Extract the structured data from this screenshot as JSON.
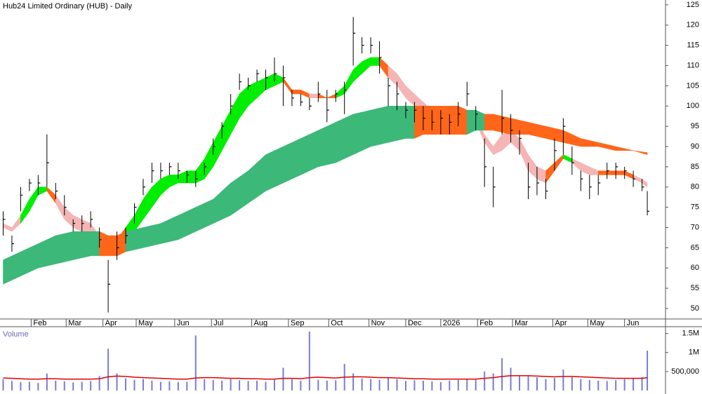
{
  "chart_data": [
    {
      "type": "hlc",
      "title": "Hub24 Limited Ordinary (HUB) - Daily",
      "color": "#000000",
      "x": [
        0,
        5,
        10,
        15,
        20,
        25,
        30,
        35,
        40,
        45,
        50,
        55,
        60,
        65,
        70,
        75,
        80,
        85,
        90,
        95,
        100,
        105,
        110,
        115,
        120,
        125,
        130,
        135,
        140,
        145,
        150,
        155,
        160,
        165,
        170,
        175,
        180,
        185,
        190,
        195,
        200,
        205,
        210,
        215,
        220,
        225,
        230,
        235,
        240,
        245,
        250,
        255,
        260,
        265,
        270,
        275,
        280,
        285,
        290,
        295,
        300,
        305,
        310,
        315,
        320,
        325,
        330,
        335,
        340,
        345,
        350,
        355,
        360,
        365,
        368
      ],
      "high": [
        74,
        68,
        80,
        82,
        83,
        93,
        81,
        78,
        72,
        73,
        74,
        70,
        62,
        69,
        70,
        76,
        82,
        86,
        86,
        86,
        86,
        84,
        84,
        86,
        92,
        96,
        103,
        108,
        107,
        109,
        109,
        112,
        110,
        104,
        103,
        102,
        106,
        104,
        104,
        106,
        122,
        117,
        117,
        116,
        107,
        106,
        101,
        101,
        100,
        99,
        99,
        98,
        101,
        106,
        100,
        92,
        85,
        104,
        98,
        94,
        86,
        85,
        82,
        92,
        97,
        90,
        84,
        83,
        83,
        86,
        86,
        85,
        84,
        82,
        79
      ],
      "low": [
        68,
        64,
        74,
        79,
        78,
        80,
        77,
        73,
        69,
        69,
        70,
        65,
        49,
        62,
        66,
        71,
        78,
        81,
        82,
        83,
        82,
        81,
        80,
        83,
        88,
        92,
        98,
        104,
        104,
        106,
        104,
        106,
        100,
        100,
        100,
        99,
        101,
        96,
        101,
        98,
        110,
        113,
        113,
        108,
        100,
        99,
        97,
        96,
        94,
        94,
        93,
        93,
        95,
        100,
        94,
        80,
        75,
        93,
        91,
        88,
        77,
        78,
        77,
        84,
        88,
        83,
        79,
        77,
        78,
        82,
        82,
        82,
        80,
        79,
        73
      ],
      "close": [
        72,
        66,
        78,
        81,
        81,
        86,
        79,
        75,
        71,
        71,
        72,
        67,
        56,
        65,
        68,
        75,
        80,
        84,
        84,
        85,
        84,
        83,
        82,
        85,
        90,
        95,
        100,
        106,
        105,
        108,
        107,
        108,
        107,
        102,
        101,
        100,
        103,
        99,
        103,
        104,
        118,
        115,
        115,
        112,
        105,
        103,
        99,
        99,
        97,
        96,
        97,
        96,
        98,
        103,
        98,
        85,
        80,
        97,
        94,
        92,
        80,
        81,
        79,
        89,
        95,
        86,
        82,
        80,
        81,
        84,
        85,
        84,
        82,
        80,
        74
      ],
      "bands": [
        {
          "upper": [
            71,
            70,
            73,
            77,
            80,
            80,
            78,
            75,
            73,
            72,
            71,
            68,
            66,
            67,
            70,
            73,
            77,
            80,
            82,
            83,
            83,
            84,
            84,
            87,
            91,
            95,
            99,
            103,
            105,
            106,
            107,
            108,
            107,
            104,
            104,
            103,
            103,
            102,
            103,
            105,
            109,
            111,
            112,
            112,
            110,
            108,
            105,
            103,
            101,
            99,
            98,
            98,
            99,
            98,
            97,
            93,
            90,
            93,
            94,
            92,
            88,
            85,
            84,
            86,
            88,
            87,
            86,
            85,
            84,
            84,
            84,
            84,
            83,
            82,
            81
          ],
          "lower": [
            70,
            69,
            71,
            74,
            78,
            79,
            76,
            72,
            70,
            69,
            68,
            66,
            64,
            65,
            67,
            69,
            72,
            75,
            78,
            80,
            81,
            81,
            81,
            82,
            85,
            89,
            93,
            97,
            100,
            102,
            104,
            105,
            106,
            103,
            103,
            102,
            102,
            102,
            102,
            103,
            106,
            108,
            110,
            110,
            107,
            105,
            102,
            100,
            99,
            98,
            97,
            97,
            98,
            98,
            96,
            91,
            88,
            89,
            91,
            89,
            84,
            82,
            81,
            84,
            87,
            86,
            84,
            83,
            83,
            83,
            83,
            83,
            82,
            81,
            80
          ],
          "colors": [
            "#f5b5b5",
            "#f5b5b5",
            "#00ee00",
            "#00ee00",
            "#00ee00",
            "#ff6619",
            "#f5b5b5",
            "#f5b5b5",
            "#f5b5b5",
            "#f5b5b5",
            "#f5b5b5",
            "#ff6619",
            "#ff6619",
            "#ff6619",
            "#00ee00",
            "#00ee00",
            "#00ee00",
            "#00ee00",
            "#00ee00",
            "#00ee00",
            "#00ee00",
            "#00ee00",
            "#00ee00",
            "#00ee00",
            "#00ee00",
            "#00ee00",
            "#00ee00",
            "#00ee00",
            "#00ee00",
            "#00ee00",
            "#00ee00",
            "#00ee00",
            "#ff6619",
            "#ff6619",
            "#ff6619",
            "#f5b5b5",
            "#ff6619",
            "#ff6619",
            "#00ee00",
            "#00ee00",
            "#00ee00",
            "#00ee00",
            "#00ee00",
            "#ff6619",
            "#f5b5b5",
            "#f5b5b5",
            "#f5b5b5",
            "#f5b5b5",
            "#f5b5b5",
            "#f5b5b5",
            "#f5b5b5",
            "#ff6619",
            "#ff6619",
            "#ff6619",
            "#f5b5b5",
            "#f5b5b5",
            "#f5b5b5",
            "#f5b5b5",
            "#f5b5b5",
            "#f5b5b5",
            "#f5b5b5",
            "#f5b5b5",
            "#ff6619",
            "#ff6619",
            "#00ee00",
            "#f5b5b5",
            "#f5b5b5",
            "#f5b5b5",
            "#ff6619",
            "#ff6619",
            "#ff6619",
            "#ff6619",
            "#f5b5b5",
            "#f5b5b5",
            "#f5b5b5"
          ]
        },
        {
          "x": [
            0,
            10,
            20,
            30,
            40,
            50,
            55,
            60,
            65,
            70,
            80,
            90,
            100,
            110,
            120,
            130,
            140,
            150,
            160,
            170,
            180,
            190,
            200,
            210,
            220,
            230,
            235,
            240,
            250,
            260,
            265,
            270,
            275,
            280,
            290,
            300,
            310,
            320,
            330,
            340,
            350,
            360,
            368
          ],
          "upper": [
            62,
            64,
            66,
            68,
            69,
            69,
            69,
            68,
            68,
            69,
            70,
            71,
            73,
            75,
            77,
            81,
            84,
            88,
            90,
            92,
            94,
            96,
            98,
            99,
            100,
            100,
            100,
            100,
            100,
            100,
            99,
            99,
            98,
            98,
            97,
            96,
            95,
            94,
            92,
            91,
            90,
            89,
            88.5
          ],
          "lower": [
            56,
            58,
            60,
            61,
            62,
            63,
            63,
            63,
            63,
            64,
            65,
            66,
            67,
            69,
            71,
            73,
            76,
            79,
            81,
            83,
            85,
            86,
            88,
            90,
            91,
            92,
            92,
            93,
            93,
            93,
            93,
            94,
            94,
            94,
            93,
            93,
            92,
            91,
            90,
            90,
            89,
            89,
            88
          ],
          "colors": [
            "#3cb878",
            "#3cb878",
            "#3cb878",
            "#3cb878",
            "#3cb878",
            "#3cb878",
            "#ff6619",
            "#ff6619",
            "#ff6619",
            "#3cb878",
            "#3cb878",
            "#3cb878",
            "#3cb878",
            "#3cb878",
            "#3cb878",
            "#3cb878",
            "#3cb878",
            "#3cb878",
            "#3cb878",
            "#3cb878",
            "#3cb878",
            "#3cb878",
            "#3cb878",
            "#3cb878",
            "#3cb878",
            "#3cb878",
            "#ff6619",
            "#ff6619",
            "#ff6619",
            "#ff6619",
            "#3cb878",
            "#3cb878",
            "#ff6619",
            "#ff6619",
            "#ff6619",
            "#ff6619",
            "#ff6619",
            "#ff6619",
            "#ff6619",
            "#ff6619",
            "#ff6619",
            "#ff6619",
            "#ff6619"
          ]
        }
      ],
      "xlim": [
        -1,
        378.4
      ],
      "xticks": [
        {
          "value": 16,
          "label": "Feb"
        },
        {
          "value": 36,
          "label": "Mar"
        },
        {
          "value": 57,
          "label": "Apr"
        },
        {
          "value": 76,
          "label": "May"
        },
        {
          "value": 98,
          "label": "Jun"
        },
        {
          "value": 119,
          "label": "Jul"
        },
        {
          "value": 142,
          "label": "Aug"
        },
        {
          "value": 163,
          "label": "Sep"
        },
        {
          "value": 186,
          "label": "Oct"
        },
        {
          "value": 209,
          "label": "Nov"
        },
        {
          "value": 230,
          "label": "Dec"
        },
        {
          "value": 250,
          "label": "2026"
        },
        {
          "value": 271,
          "label": "Feb"
        },
        {
          "value": 291,
          "label": "Mar"
        },
        {
          "value": 314,
          "label": "Apr"
        },
        {
          "value": 334,
          "label": "May"
        },
        {
          "value": 355,
          "label": "Jun"
        }
      ],
      "ylim": [
        47.4,
        126.2
      ],
      "yticks": [
        50,
        55,
        60,
        65,
        70,
        75,
        80,
        85,
        90,
        95,
        100,
        105,
        110,
        115,
        120,
        125
      ]
    },
    {
      "type": "bar",
      "title": "Volume",
      "color": "#7b7bd6",
      "average_color": "#e00000",
      "values": [
        300000,
        250000,
        220000,
        230000,
        200000,
        450000,
        260000,
        240000,
        210000,
        230000,
        250000,
        380000,
        1100000,
        450000,
        320000,
        280000,
        300000,
        260000,
        230000,
        240000,
        220000,
        230000,
        1450000,
        300000,
        280000,
        260000,
        300000,
        270000,
        250000,
        260000,
        230000,
        280000,
        600000,
        300000,
        260000,
        1550000,
        280000,
        260000,
        270000,
        700000,
        450000,
        320000,
        300000,
        280000,
        350000,
        300000,
        250000,
        270000,
        260000,
        240000,
        220000,
        260000,
        280000,
        300000,
        280000,
        500000,
        450000,
        850000,
        600000,
        400000,
        380000,
        350000,
        300000,
        330000,
        550000,
        350000,
        300000,
        280000,
        260000,
        250000,
        270000,
        300000,
        320000,
        350000,
        1050000
      ],
      "average": [
        330000,
        320000,
        310000,
        300000,
        300000,
        310000,
        310000,
        300000,
        300000,
        300000,
        300000,
        310000,
        360000,
        380000,
        370000,
        350000,
        340000,
        330000,
        320000,
        310000,
        300000,
        300000,
        330000,
        340000,
        340000,
        330000,
        320000,
        320000,
        310000,
        310000,
        300000,
        300000,
        320000,
        320000,
        310000,
        340000,
        350000,
        340000,
        330000,
        350000,
        360000,
        360000,
        350000,
        340000,
        340000,
        330000,
        320000,
        310000,
        310000,
        300000,
        300000,
        300000,
        300000,
        300000,
        300000,
        320000,
        340000,
        370000,
        390000,
        390000,
        390000,
        380000,
        370000,
        360000,
        370000,
        370000,
        360000,
        350000,
        340000,
        330000,
        320000,
        320000,
        320000,
        320000,
        340000
      ],
      "ylim": [
        0,
        1680000
      ],
      "yticks": [
        {
          "value": 500000,
          "label": "500,000"
        },
        {
          "value": 1000000,
          "label": "1M"
        },
        {
          "value": 1500000,
          "label": "1.5M"
        }
      ]
    }
  ]
}
